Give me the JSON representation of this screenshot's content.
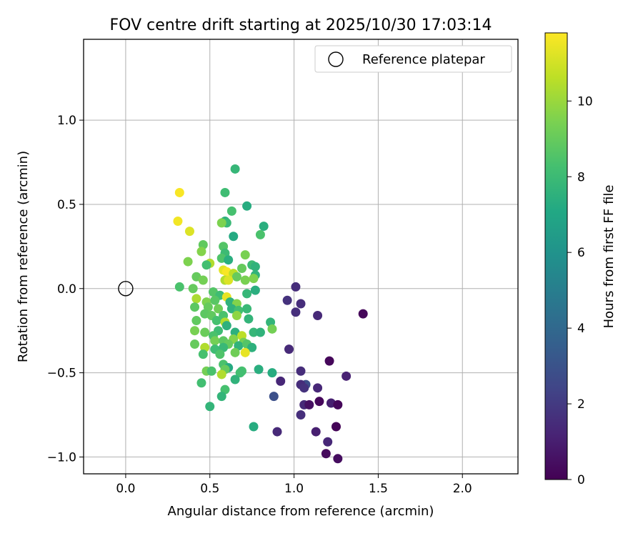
{
  "chart_data": {
    "type": "scatter",
    "title": "FOV centre drift starting at 2025/10/30 17:03:14",
    "xlabel": "Angular distance from reference (arcmin)",
    "ylabel": "Rotation from reference (arcmin)",
    "xlim": [
      -0.25,
      2.33
    ],
    "ylim": [
      -1.1,
      1.48
    ],
    "xticks": [
      0.0,
      0.5,
      1.0,
      1.5,
      2.0
    ],
    "xtick_labels": [
      "0.0",
      "0.5",
      "1.0",
      "1.5",
      "2.0"
    ],
    "yticks": [
      -1.0,
      -0.5,
      0.0,
      0.5,
      1.0
    ],
    "ytick_labels": [
      "−1.0",
      "−0.5",
      "0.0",
      "0.5",
      "1.0"
    ],
    "grid": true,
    "legend": {
      "position": "top-right",
      "entries": [
        "Reference platepar"
      ]
    },
    "reference_point": {
      "x": 0.0,
      "y": 0.0
    },
    "colorbar": {
      "label": "Hours from first FF file",
      "range": [
        0,
        11.8
      ],
      "ticks": [
        0,
        2,
        4,
        6,
        8,
        10
      ],
      "tick_labels": [
        "0",
        "2",
        "4",
        "6",
        "8",
        "10"
      ],
      "colormap": "viridis"
    },
    "points": [
      {
        "x": 1.41,
        "y": -0.15,
        "c": 0.2
      },
      {
        "x": 1.01,
        "y": 0.01,
        "c": 1.5
      },
      {
        "x": 0.96,
        "y": -0.07,
        "c": 1.7
      },
      {
        "x": 1.04,
        "y": -0.09,
        "c": 1.5
      },
      {
        "x": 1.01,
        "y": -0.14,
        "c": 1.6
      },
      {
        "x": 1.14,
        "y": -0.16,
        "c": 1.4
      },
      {
        "x": 0.97,
        "y": -0.36,
        "c": 1.4
      },
      {
        "x": 1.21,
        "y": -0.43,
        "c": 0.2
      },
      {
        "x": 1.04,
        "y": -0.49,
        "c": 1.5
      },
      {
        "x": 0.92,
        "y": -0.55,
        "c": 1.3
      },
      {
        "x": 1.31,
        "y": -0.52,
        "c": 1.1
      },
      {
        "x": 1.07,
        "y": -0.57,
        "c": 2.8
      },
      {
        "x": 1.04,
        "y": -0.57,
        "c": 1.5
      },
      {
        "x": 1.06,
        "y": -0.59,
        "c": 1.7
      },
      {
        "x": 1.14,
        "y": -0.59,
        "c": 1.3
      },
      {
        "x": 0.88,
        "y": -0.64,
        "c": 2.9
      },
      {
        "x": 1.06,
        "y": -0.69,
        "c": 1.4
      },
      {
        "x": 1.09,
        "y": -0.69,
        "c": 0.5
      },
      {
        "x": 1.15,
        "y": -0.67,
        "c": 0.2
      },
      {
        "x": 1.22,
        "y": -0.68,
        "c": 1.0
      },
      {
        "x": 1.26,
        "y": -0.69,
        "c": 0.2
      },
      {
        "x": 1.04,
        "y": -0.75,
        "c": 1.6
      },
      {
        "x": 0.9,
        "y": -0.85,
        "c": 1.4
      },
      {
        "x": 1.13,
        "y": -0.85,
        "c": 1.0
      },
      {
        "x": 1.25,
        "y": -0.82,
        "c": 0.1
      },
      {
        "x": 1.2,
        "y": -0.91,
        "c": 1.3
      },
      {
        "x": 1.19,
        "y": -0.98,
        "c": 0.3
      },
      {
        "x": 1.26,
        "y": -1.01,
        "c": 0.4
      },
      {
        "x": 0.65,
        "y": 0.71,
        "c": 7.8
      },
      {
        "x": 0.59,
        "y": 0.57,
        "c": 8.1
      },
      {
        "x": 0.72,
        "y": 0.49,
        "c": 7.3
      },
      {
        "x": 0.63,
        "y": 0.46,
        "c": 8.3
      },
      {
        "x": 0.59,
        "y": 0.4,
        "c": 7.5
      },
      {
        "x": 0.6,
        "y": 0.39,
        "c": 7.9
      },
      {
        "x": 0.57,
        "y": 0.39,
        "c": 9.5
      },
      {
        "x": 0.82,
        "y": 0.37,
        "c": 7.4
      },
      {
        "x": 0.64,
        "y": 0.31,
        "c": 7.2
      },
      {
        "x": 0.8,
        "y": 0.32,
        "c": 8.4
      },
      {
        "x": 0.46,
        "y": 0.26,
        "c": 8.9
      },
      {
        "x": 0.58,
        "y": 0.25,
        "c": 8.6
      },
      {
        "x": 0.45,
        "y": 0.22,
        "c": 9.6
      },
      {
        "x": 0.59,
        "y": 0.21,
        "c": 8.0
      },
      {
        "x": 0.71,
        "y": 0.2,
        "c": 9.4
      },
      {
        "x": 0.37,
        "y": 0.16,
        "c": 9.5
      },
      {
        "x": 0.5,
        "y": 0.15,
        "c": 10.4
      },
      {
        "x": 0.57,
        "y": 0.18,
        "c": 8.5
      },
      {
        "x": 0.61,
        "y": 0.17,
        "c": 7.4
      },
      {
        "x": 0.75,
        "y": 0.14,
        "c": 8.0
      },
      {
        "x": 0.77,
        "y": 0.13,
        "c": 7.6
      },
      {
        "x": 0.69,
        "y": 0.12,
        "c": 9.0
      },
      {
        "x": 0.48,
        "y": 0.14,
        "c": 8.2
      },
      {
        "x": 0.58,
        "y": 0.11,
        "c": 11.3
      },
      {
        "x": 0.6,
        "y": 0.1,
        "c": 11.7
      },
      {
        "x": 0.64,
        "y": 0.09,
        "c": 10.6
      },
      {
        "x": 0.66,
        "y": 0.07,
        "c": 9.0
      },
      {
        "x": 0.77,
        "y": 0.08,
        "c": 7.6
      },
      {
        "x": 0.42,
        "y": 0.07,
        "c": 9.0
      },
      {
        "x": 0.46,
        "y": 0.05,
        "c": 9.3
      },
      {
        "x": 0.59,
        "y": 0.05,
        "c": 10.4
      },
      {
        "x": 0.61,
        "y": 0.05,
        "c": 11.2
      },
      {
        "x": 0.71,
        "y": 0.05,
        "c": 9.4
      },
      {
        "x": 0.76,
        "y": 0.06,
        "c": 9.5
      },
      {
        "x": 0.32,
        "y": 0.01,
        "c": 8.4
      },
      {
        "x": 0.4,
        "y": 0.0,
        "c": 9.0
      },
      {
        "x": 0.52,
        "y": -0.02,
        "c": 8.6
      },
      {
        "x": 0.56,
        "y": -0.04,
        "c": 8.1
      },
      {
        "x": 0.72,
        "y": -0.03,
        "c": 7.8
      },
      {
        "x": 0.77,
        "y": -0.01,
        "c": 7.4
      },
      {
        "x": 0.6,
        "y": -0.05,
        "c": 11.4
      },
      {
        "x": 0.42,
        "y": -0.06,
        "c": 10.3
      },
      {
        "x": 0.48,
        "y": -0.08,
        "c": 9.5
      },
      {
        "x": 0.53,
        "y": -0.07,
        "c": 8.7
      },
      {
        "x": 0.62,
        "y": -0.08,
        "c": 7.6
      },
      {
        "x": 0.66,
        "y": -0.09,
        "c": 9.6
      },
      {
        "x": 0.41,
        "y": -0.11,
        "c": 8.8
      },
      {
        "x": 0.49,
        "y": -0.11,
        "c": 9.0
      },
      {
        "x": 0.55,
        "y": -0.12,
        "c": 9.2
      },
      {
        "x": 0.63,
        "y": -0.12,
        "c": 7.6
      },
      {
        "x": 0.67,
        "y": -0.13,
        "c": 8.2
      },
      {
        "x": 0.72,
        "y": -0.12,
        "c": 7.9
      },
      {
        "x": 0.47,
        "y": -0.15,
        "c": 8.8
      },
      {
        "x": 0.51,
        "y": -0.16,
        "c": 8.9
      },
      {
        "x": 0.58,
        "y": -0.16,
        "c": 8.4
      },
      {
        "x": 0.66,
        "y": -0.16,
        "c": 9.8
      },
      {
        "x": 0.42,
        "y": -0.19,
        "c": 8.9
      },
      {
        "x": 0.54,
        "y": -0.19,
        "c": 8.3
      },
      {
        "x": 0.59,
        "y": -0.2,
        "c": 10.4
      },
      {
        "x": 0.73,
        "y": -0.18,
        "c": 7.7
      },
      {
        "x": 0.6,
        "y": -0.22,
        "c": 7.5
      },
      {
        "x": 0.86,
        "y": -0.2,
        "c": 7.7
      },
      {
        "x": 0.41,
        "y": -0.25,
        "c": 9.4
      },
      {
        "x": 0.47,
        "y": -0.26,
        "c": 9.1
      },
      {
        "x": 0.55,
        "y": -0.25,
        "c": 8.1
      },
      {
        "x": 0.65,
        "y": -0.26,
        "c": 7.5
      },
      {
        "x": 0.76,
        "y": -0.26,
        "c": 7.8
      },
      {
        "x": 0.8,
        "y": -0.26,
        "c": 7.6
      },
      {
        "x": 0.87,
        "y": -0.24,
        "c": 9.3
      },
      {
        "x": 0.52,
        "y": -0.28,
        "c": 8.4
      },
      {
        "x": 0.69,
        "y": -0.28,
        "c": 10.6
      },
      {
        "x": 0.53,
        "y": -0.31,
        "c": 9.3
      },
      {
        "x": 0.58,
        "y": -0.31,
        "c": 8.8
      },
      {
        "x": 0.64,
        "y": -0.3,
        "c": 9.6
      },
      {
        "x": 0.7,
        "y": -0.32,
        "c": 9.3
      },
      {
        "x": 0.41,
        "y": -0.33,
        "c": 9.0
      },
      {
        "x": 0.47,
        "y": -0.35,
        "c": 10.4
      },
      {
        "x": 0.61,
        "y": -0.33,
        "c": 9.0
      },
      {
        "x": 0.67,
        "y": -0.34,
        "c": 7.6
      },
      {
        "x": 0.72,
        "y": -0.33,
        "c": 8.6
      },
      {
        "x": 0.53,
        "y": -0.36,
        "c": 8.1
      },
      {
        "x": 0.58,
        "y": -0.35,
        "c": 7.9
      },
      {
        "x": 0.75,
        "y": -0.35,
        "c": 7.5
      },
      {
        "x": 0.46,
        "y": -0.39,
        "c": 8.3
      },
      {
        "x": 0.56,
        "y": -0.39,
        "c": 8.5
      },
      {
        "x": 0.65,
        "y": -0.38,
        "c": 9.2
      },
      {
        "x": 0.71,
        "y": -0.38,
        "c": 11.4
      },
      {
        "x": 0.58,
        "y": -0.45,
        "c": 8.4
      },
      {
        "x": 0.61,
        "y": -0.47,
        "c": 7.2
      },
      {
        "x": 0.48,
        "y": -0.49,
        "c": 9.3
      },
      {
        "x": 0.51,
        "y": -0.49,
        "c": 8.4
      },
      {
        "x": 0.59,
        "y": -0.48,
        "c": 9.0
      },
      {
        "x": 0.69,
        "y": -0.49,
        "c": 8.3
      },
      {
        "x": 0.79,
        "y": -0.48,
        "c": 7.4
      },
      {
        "x": 0.87,
        "y": -0.5,
        "c": 7.3
      },
      {
        "x": 0.57,
        "y": -0.51,
        "c": 10.4
      },
      {
        "x": 0.68,
        "y": -0.5,
        "c": 8.2
      },
      {
        "x": 0.45,
        "y": -0.56,
        "c": 8.2
      },
      {
        "x": 0.65,
        "y": -0.54,
        "c": 7.6
      },
      {
        "x": 0.59,
        "y": -0.6,
        "c": 8.3
      },
      {
        "x": 0.57,
        "y": -0.64,
        "c": 7.7
      },
      {
        "x": 0.5,
        "y": -0.7,
        "c": 7.7
      },
      {
        "x": 0.76,
        "y": -0.82,
        "c": 7.3
      },
      {
        "x": 0.32,
        "y": 0.57,
        "c": 11.7
      },
      {
        "x": 0.31,
        "y": 0.4,
        "c": 11.6
      },
      {
        "x": 0.38,
        "y": 0.34,
        "c": 11.2
      }
    ]
  }
}
